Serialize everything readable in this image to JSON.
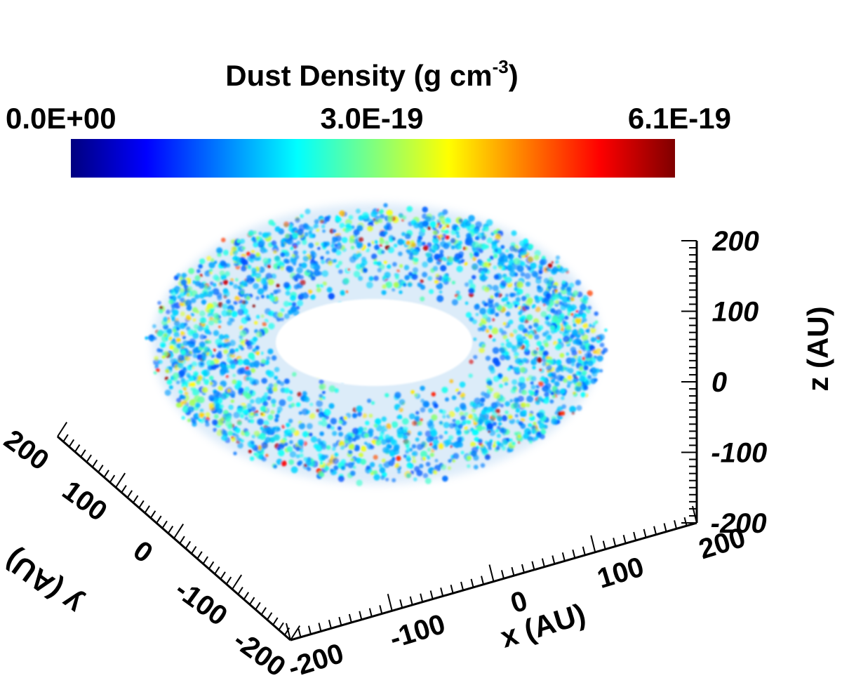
{
  "chart_data": {
    "type": "volume-render",
    "colorbar": {
      "title": "Dust Density (g cm",
      "title_exponent": "-3",
      "title_close": ")",
      "min_label": "0.0E+00",
      "mid_label": "3.0E-19",
      "max_label": "6.1E-19",
      "range": [
        0,
        6.1e-19
      ],
      "colormap": [
        "#00007f",
        "#0000ff",
        "#007fff",
        "#00ffff",
        "#7fff7f",
        "#ffff00",
        "#ff7f00",
        "#ff0000",
        "#7f0000"
      ]
    },
    "axes": {
      "x": {
        "label": "x (AU)",
        "range": [
          -200,
          200
        ],
        "ticks": [
          -200,
          -100,
          0,
          100,
          200
        ],
        "tick_labels": [
          "-200",
          "-100",
          "0",
          "100",
          "200"
        ]
      },
      "y": {
        "label": "y (AU)",
        "range": [
          -200,
          200
        ],
        "ticks": [
          -200,
          -100,
          0,
          100,
          200
        ],
        "tick_labels": [
          "-200",
          "-100",
          "0",
          "100",
          "200"
        ]
      },
      "z": {
        "label": "z (AU)",
        "range": [
          -200,
          200
        ],
        "ticks": [
          -200,
          -100,
          0,
          100,
          200
        ],
        "tick_labels": [
          "-200",
          "-100",
          "0",
          "100",
          "200"
        ]
      }
    },
    "structure": {
      "shape": "ring",
      "inner_radius_au": 60,
      "outer_radius_au": 150
    }
  }
}
